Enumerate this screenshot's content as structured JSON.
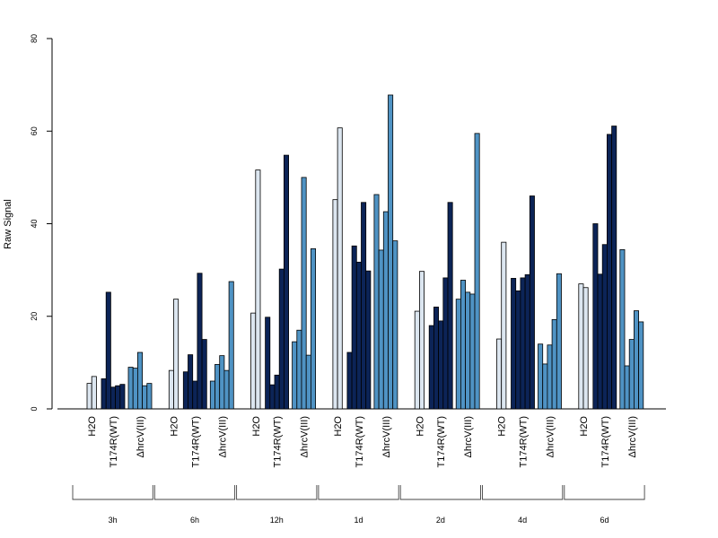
{
  "chart_data": {
    "type": "bar",
    "title": "",
    "xlabel": "",
    "ylabel": "Raw Signal",
    "ylim": [
      0,
      80
    ],
    "yticks": [
      0,
      20,
      40,
      60,
      80
    ],
    "grid": false,
    "legend": "none",
    "timepoints": [
      "3h",
      "6h",
      "12h",
      "1d",
      "2d",
      "4d",
      "6d"
    ],
    "treatments": [
      "H2O",
      "T174R(WT)",
      "ΔhrcV(III)"
    ],
    "colors": {
      "H2O": "#dce6f0",
      "T174R(WT)": "#0c2457",
      "ΔhrcV(III)": "#4f93c4"
    },
    "groups": [
      {
        "timepoint": "3h",
        "H2O": [
          5.5,
          7
        ],
        "T174R(WT)": [
          6.5,
          25.2,
          4.7,
          5,
          5.3
        ],
        "ΔhrcV(III)": [
          9,
          8.8,
          12.2,
          5,
          5.5
        ]
      },
      {
        "timepoint": "6h",
        "H2O": [
          8.3,
          23.7
        ],
        "T174R(WT)": [
          8,
          11.7,
          6,
          29.3,
          15
        ],
        "ΔhrcV(III)": [
          6,
          9.6,
          11.5,
          8.3,
          27.5
        ]
      },
      {
        "timepoint": "12h",
        "H2O": [
          20.7,
          51.6
        ],
        "T174R(WT)": [
          19.8,
          5.2,
          7.3,
          30.2,
          54.8
        ],
        "ΔhrcV(III)": [
          14.5,
          17,
          50,
          11.6,
          34.6
        ]
      },
      {
        "timepoint": "1d",
        "H2O": [
          45.2,
          60.7
        ],
        "T174R(WT)": [
          12.2,
          35.2,
          31.7,
          44.6,
          29.8
        ],
        "ΔhrcV(III)": [
          46.3,
          34.3,
          42.6,
          67.8,
          36.3
        ]
      },
      {
        "timepoint": "2d",
        "H2O": [
          21.1,
          29.7
        ],
        "T174R(WT)": [
          18,
          22,
          19,
          28.3,
          44.6
        ],
        "ΔhrcV(III)": [
          23.7,
          27.8,
          25.2,
          24.8,
          59.5
        ]
      },
      {
        "timepoint": "4d",
        "H2O": [
          15.1,
          36
        ],
        "T174R(WT)": [
          28.2,
          25.5,
          28.3,
          29,
          46
        ],
        "ΔhrcV(III)": [
          14,
          9.7,
          13.8,
          19.3,
          29.2
        ]
      },
      {
        "timepoint": "6d",
        "H2O": [
          27,
          26.2
        ],
        "T174R(WT)": [
          40,
          29.1,
          35.5,
          59.3,
          61.1
        ],
        "ΔhrcV(III)": [
          34.4,
          9.3,
          15,
          21.2,
          18.8
        ]
      }
    ]
  }
}
